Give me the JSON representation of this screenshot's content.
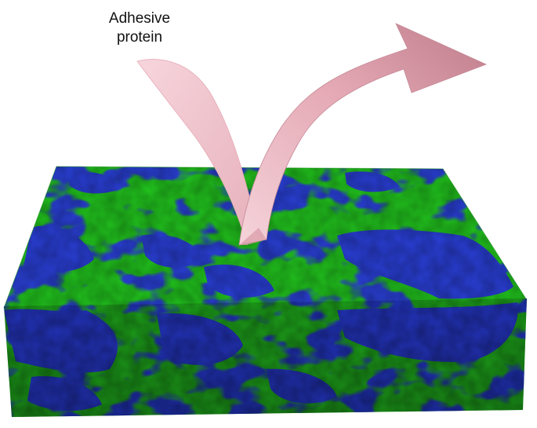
{
  "label": {
    "line1": "Adhesive",
    "line2": "protein"
  },
  "colors": {
    "background": "#ffffff",
    "polymer_a_green": "#22c41e",
    "polymer_b_blue": "#2a3fd6",
    "arrow_light": "#f3c9d1",
    "arrow_dark": "#c98593"
  },
  "icons": {
    "arrow": "bounce-arrow-icon",
    "slab": "polymer-blend-slab"
  }
}
